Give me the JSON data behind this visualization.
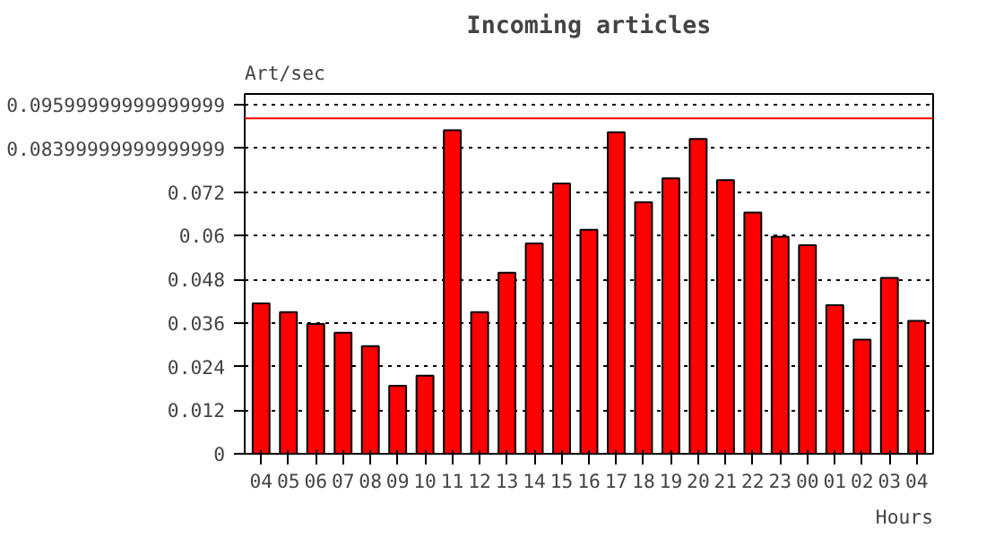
{
  "chart_data": {
    "type": "bar",
    "title": "Incoming articles",
    "ylabel": "Art/sec",
    "xlabel": "Hours",
    "categories": [
      "04",
      "05",
      "06",
      "07",
      "08",
      "09",
      "10",
      "11",
      "12",
      "13",
      "14",
      "15",
      "16",
      "17",
      "18",
      "19",
      "20",
      "21",
      "22",
      "23",
      "00",
      "01",
      "02",
      "03",
      "04"
    ],
    "values": [
      0.0414,
      0.039,
      0.0357,
      0.0333,
      0.0296,
      0.0187,
      0.0215,
      0.089,
      0.039,
      0.0498,
      0.0579,
      0.0744,
      0.0616,
      0.0885,
      0.0692,
      0.0758,
      0.0866,
      0.0753,
      0.0664,
      0.0597,
      0.0574,
      0.0409,
      0.0314,
      0.0484,
      0.0366
    ],
    "color": "#ff0000",
    "ylim": [
      0,
      0.099
    ],
    "yticks": [
      0,
      0.012,
      0.024,
      0.036,
      0.048,
      0.06,
      0.072,
      {
        "value": 0.084,
        "label": "0.08399999999999999"
      },
      {
        "value": 0.096,
        "label": "0.09599999999999999"
      }
    ],
    "grid": "y",
    "ref_lines": [
      {
        "axis": "y",
        "value": 0.0923,
        "color": "#ff0000"
      }
    ]
  }
}
